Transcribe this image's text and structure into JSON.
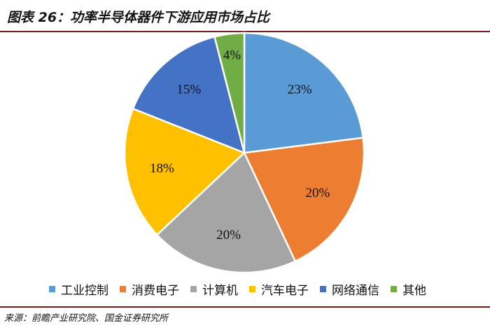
{
  "title": "图表 26：功率半导体器件下游应用市场占比",
  "source": "来源：前瞻产业研究院、国金证券研究所",
  "chart_data": {
    "type": "pie",
    "categories": [
      "工业控制",
      "消费电子",
      "计算机",
      "汽车电子",
      "网络通信",
      "其他"
    ],
    "values": [
      23,
      20,
      20,
      18,
      15,
      4
    ],
    "labels": [
      "23%",
      "20%",
      "20%",
      "18%",
      "15%",
      "4%"
    ],
    "colors": [
      "#5b9bd5",
      "#ed7d31",
      "#a5a5a5",
      "#ffc000",
      "#4472c4",
      "#70ad47"
    ],
    "start_angle_deg": 0,
    "direction": "clockwise",
    "legend_position": "bottom"
  }
}
